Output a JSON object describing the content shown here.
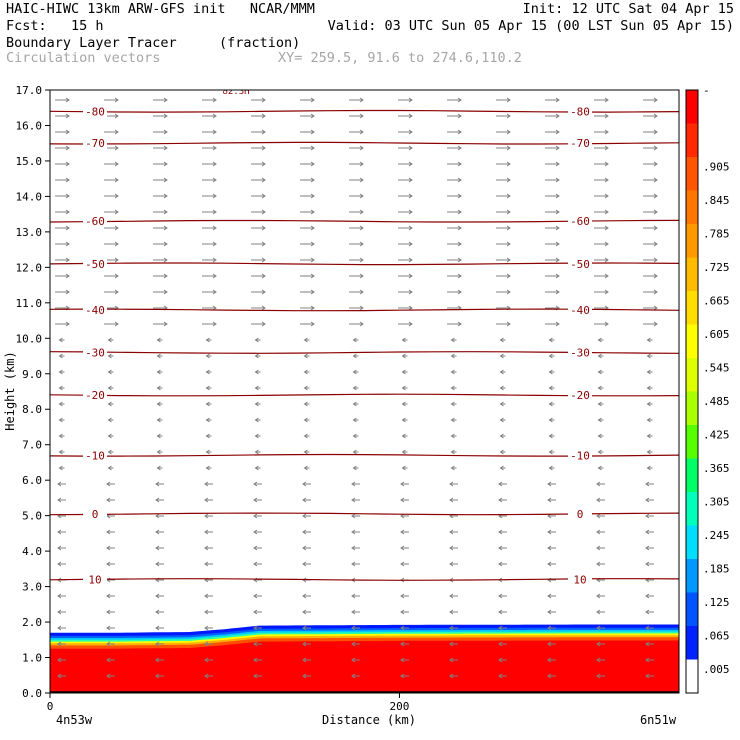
{
  "header": {
    "title_left": "HAIC-HIWC 13km ARW-GFS init   NCAR/MMM",
    "title_right": "Init: 12 UTC Sat 04 Apr 15",
    "fcst": "Fcst:   15 h",
    "valid": "Valid: 03 UTC Sun 05 Apr 15 (00 LST Sun 05 Apr 15)",
    "field": "Boundary Layer Tracer",
    "field_units": "(fraction)",
    "vectors": "Circulation vectors",
    "xy": "XY= 259.5, 91.6 to 274.6,110.2"
  },
  "chart_data": {
    "type": "heatmap",
    "xlabel": "Distance (km)",
    "ylabel": "Height (km)",
    "xlim": [
      0,
      360
    ],
    "ylim": [
      0,
      17
    ],
    "x_ticks": [
      0,
      200
    ],
    "x_tick_labels": [
      "0",
      "200"
    ],
    "x_end_labels": [
      "4n53w",
      "6n51w"
    ],
    "y_ticks": [
      0,
      1,
      2,
      3,
      4,
      5,
      6,
      7,
      8,
      9,
      10,
      11,
      12,
      13,
      14,
      15,
      16,
      17
    ],
    "y_tick_labels": [
      "0.0",
      "1.0",
      "2.0",
      "3.0",
      "4.0",
      "5.0",
      "6.0",
      "7.0",
      "8.0",
      "9.0",
      "10.0",
      "11.0",
      "12.0",
      "13.0",
      "14.0",
      "15.0",
      "16.0",
      "17.0"
    ],
    "colorbar": {
      "labels": [
        "-",
        ".905",
        ".845",
        ".785",
        ".725",
        ".665",
        ".605",
        ".545",
        ".485",
        ".425",
        ".365",
        ".305",
        ".245",
        ".185",
        ".125",
        ".065",
        ".005"
      ],
      "colors": [
        "#ff0000",
        "#ff2a00",
        "#ff5500",
        "#ff7700",
        "#ff9900",
        "#ffbb00",
        "#ffdd00",
        "#ffff00",
        "#ddff00",
        "#aaff00",
        "#55ff00",
        "#00ff66",
        "#00ffbb",
        "#00ddff",
        "#0099ff",
        "#0055ff",
        "#0022ff",
        "#ffffff"
      ]
    },
    "tracer_top_km": [
      1.7,
      1.7,
      1.72,
      1.8,
      1.9,
      1.92,
      1.93,
      1.93
    ],
    "tracer_top_x": [
      0,
      40,
      80,
      100,
      120,
      200,
      300,
      360
    ],
    "temperature_contours": [
      {
        "value": -80,
        "label": "-80",
        "height_km": 16.4
      },
      {
        "value": -70,
        "label": "-70",
        "height_km": 15.5
      },
      {
        "value": -60,
        "label": "-60",
        "height_km": 13.3
      },
      {
        "value": -50,
        "label": "-50",
        "height_km": 12.1
      },
      {
        "value": -40,
        "label": "-40",
        "height_km": 10.8
      },
      {
        "value": -30,
        "label": "-30",
        "height_km": 9.6
      },
      {
        "value": -20,
        "label": "-20",
        "height_km": 8.4
      },
      {
        "value": -10,
        "label": "-10",
        "height_km": 6.7
      },
      {
        "value": 0,
        "label": "0",
        "height_km": 5.05
      },
      {
        "value": 10,
        "label": "10",
        "height_km": 3.2
      }
    ],
    "contour_label_text": "82.3H",
    "wind_regime": [
      {
        "from_km": 10.0,
        "to_km": 17.0,
        "direction": "east",
        "strength": "strong"
      },
      {
        "from_km": 6.0,
        "to_km": 10.0,
        "direction": "west",
        "strength": "weak"
      },
      {
        "from_km": 0.0,
        "to_km": 6.0,
        "direction": "west",
        "strength": "moderate"
      }
    ]
  }
}
